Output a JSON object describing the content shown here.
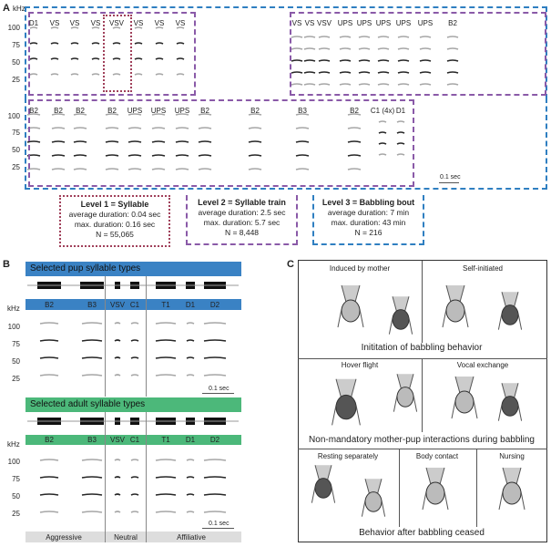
{
  "panel_a": {
    "label": "A",
    "axis_unit": "kHz",
    "ticks": [
      "100",
      "75",
      "50",
      "25"
    ],
    "row1_left_syllables": [
      "D1",
      "VS",
      "VS",
      "VS",
      "VSV",
      "VS",
      "VS",
      "VS"
    ],
    "row1_right_syllables": [
      "VS",
      "VS",
      "VSV",
      "UPS",
      "UPS",
      "UPS",
      "UPS",
      "UPS",
      "B2"
    ],
    "row2_syllables": [
      "B2",
      "B2",
      "B2",
      "B2",
      "UPS",
      "UPS",
      "UPS",
      "B2",
      "B2",
      "B3",
      "B2",
      "C1 (4x)",
      "D1"
    ],
    "scale_bar": "0.1 sec",
    "levels": [
      {
        "title": "Level 1 = Syllable",
        "avg": "average duration: 0.04 sec",
        "max": "max. duration: 0.16 sec",
        "n": "N = 55,065",
        "color": "#a0405a",
        "style": "dotted"
      },
      {
        "title": "Level 2 = Syllable train",
        "avg": "average duration: 2.5 sec",
        "max": "max. duration: 5.7 sec",
        "n": "N = 8,448",
        "color": "#8a5aa8",
        "style": "dashed"
      },
      {
        "title": "Level 3 =  Babbling bout",
        "avg": "average duration: 7 min",
        "max": "max. duration: 43 min",
        "n": "N = 216",
        "color": "#2f7fc1",
        "style": "dash-dot"
      }
    ]
  },
  "panel_b": {
    "label": "B",
    "pup_title": "Selected pup syllable types",
    "adult_title": "Selected adult syllable types",
    "pup_color": "#3a82c4",
    "adult_color": "#4cb87a",
    "syllables": [
      "B2",
      "B3",
      "VSV",
      "C1",
      "T1",
      "D1",
      "D2"
    ],
    "axis_unit": "kHz",
    "ticks": [
      "100",
      "75",
      "50",
      "25"
    ],
    "scale_bar": "0.1 sec",
    "categories": [
      "Aggressive",
      "Neutral",
      "Affiliative"
    ]
  },
  "panel_c": {
    "label": "C",
    "rows": [
      {
        "caption": "Inititation of babbling behavior",
        "cells": [
          "Induced by mother",
          "Self-initiated"
        ]
      },
      {
        "caption": "Non-mandatory mother-pup interactions during babbling",
        "cells": [
          "Hover flight",
          "Vocal exchange"
        ]
      },
      {
        "caption": "Behavior after babbling ceased",
        "cells": [
          "Resting separately",
          "Body contact",
          "Nursing"
        ]
      }
    ]
  }
}
